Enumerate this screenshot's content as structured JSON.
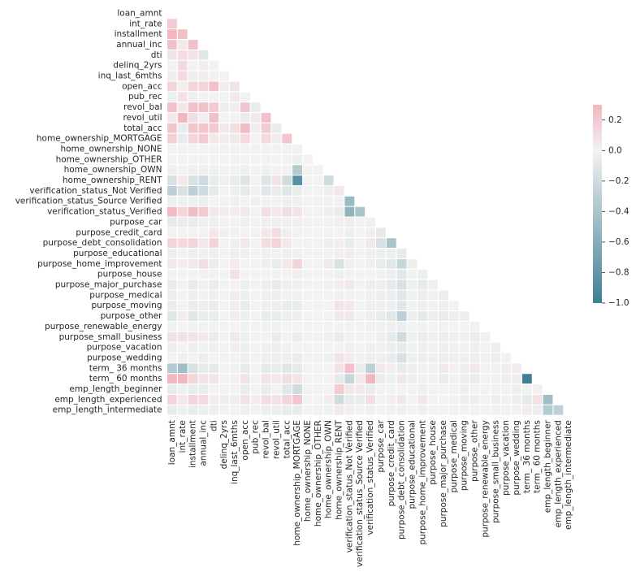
{
  "chart_data": {
    "type": "heatmap",
    "title": "",
    "mask": "upper-triangle-including-diagonal",
    "labels": [
      "loan_amnt",
      "int_rate",
      "installment",
      "annual_inc",
      "dti",
      "delinq_2yrs",
      "inq_last_6mths",
      "open_acc",
      "pub_rec",
      "revol_bal",
      "revol_util",
      "total_acc",
      "home_ownership_MORTGAGE",
      "home_ownership_NONE",
      "home_ownership_OTHER",
      "home_ownership_OWN",
      "home_ownership_RENT",
      "verification_status_Not Verified",
      "verification_status_Source Verified",
      "verification_status_Verified",
      "purpose_car",
      "purpose_credit_card",
      "purpose_debt_consolidation",
      "purpose_educational",
      "purpose_home_improvement",
      "purpose_house",
      "purpose_major_purchase",
      "purpose_medical",
      "purpose_moving",
      "purpose_other",
      "purpose_renewable_energy",
      "purpose_small_business",
      "purpose_vacation",
      "purpose_wedding",
      "term_ 36 months",
      "term_ 60 months",
      "emp_length_beginner",
      "emp_length_experienced",
      "emp_length_intermediate"
    ],
    "vmin": -1.0,
    "vmax": 0.3,
    "center": 0,
    "colorbar": {
      "ticks": [
        -1.0,
        -0.8,
        -0.6,
        -0.4,
        -0.2,
        0.0,
        0.2
      ],
      "tick_labels": [
        "−1.0",
        "−0.8",
        "−0.6",
        "−0.4",
        "−0.2",
        "0.0",
        "0.2"
      ]
    },
    "colors": {
      "negative": "#3f7f93",
      "center": "#f2f2f2",
      "positive": "#f2b6c0"
    },
    "values": [
      [
        0
      ],
      [
        0.2,
        0
      ],
      [
        0.3,
        0.25,
        0
      ],
      [
        0.25,
        0.05,
        0.25,
        0
      ],
      [
        0.07,
        0.1,
        0.07,
        -0.1,
        0
      ],
      [
        0,
        0.12,
        0,
        0.02,
        0,
        0
      ],
      [
        0.02,
        0.12,
        0.02,
        0.03,
        0.01,
        0,
        0
      ],
      [
        0.15,
        0.02,
        0.15,
        0.15,
        0.25,
        0.02,
        0.07,
        0
      ],
      [
        -0.02,
        0.08,
        -0.02,
        0,
        0,
        0,
        0.05,
        0,
        0
      ],
      [
        0.25,
        0.05,
        0.25,
        0.25,
        0.2,
        -0.02,
        0.02,
        0.22,
        -0.05,
        0
      ],
      [
        0.05,
        0.3,
        0.1,
        0.02,
        0.25,
        0,
        0,
        -0.05,
        0.05,
        0.25,
        0
      ],
      [
        0.22,
        -0.05,
        0.22,
        0.22,
        0.2,
        0.05,
        0.1,
        0.28,
        0.02,
        0.2,
        -0.05,
        0
      ],
      [
        0.17,
        -0.05,
        0.15,
        0.2,
        0.05,
        0.02,
        0.05,
        0.12,
        0,
        0.12,
        0.03,
        0.22,
        0
      ],
      [
        0,
        0,
        0,
        0,
        0,
        0,
        0,
        0,
        0,
        0,
        0,
        0,
        -0.01,
        0
      ],
      [
        0,
        0,
        0,
        0,
        0,
        0,
        0,
        0,
        0,
        0,
        0,
        0,
        -0.03,
        0,
        0
      ],
      [
        -0.02,
        0,
        -0.02,
        -0.02,
        -0.02,
        0,
        0,
        -0.02,
        0,
        -0.02,
        0,
        0,
        -0.35,
        0,
        0,
        0
      ],
      [
        -0.15,
        0.05,
        -0.15,
        -0.2,
        -0.05,
        -0.02,
        -0.05,
        -0.12,
        0,
        -0.12,
        0.07,
        -0.2,
        -0.85,
        0,
        0,
        -0.2,
        0
      ],
      [
        -0.3,
        -0.15,
        -0.3,
        -0.2,
        -0.07,
        0,
        -0.02,
        -0.07,
        -0.01,
        -0.1,
        -0.05,
        -0.1,
        -0.05,
        0,
        0,
        0.02,
        0.05,
        0
      ],
      [
        -0.02,
        -0.02,
        -0.02,
        -0.03,
        0,
        0,
        0.02,
        0,
        0.02,
        -0.01,
        0,
        -0.02,
        -0.02,
        0,
        0,
        0.01,
        0.01,
        -0.5,
        0
      ],
      [
        0.28,
        0.15,
        0.27,
        0.2,
        0.05,
        0.02,
        0.02,
        0.05,
        0,
        0.1,
        0.05,
        0.1,
        0.07,
        0,
        0,
        -0.02,
        -0.05,
        -0.55,
        -0.4,
        0
      ],
      [
        -0.07,
        -0.05,
        -0.05,
        -0.02,
        -0.03,
        0,
        0,
        -0.02,
        0,
        -0.03,
        -0.03,
        -0.02,
        0.02,
        0,
        0,
        0,
        -0.02,
        0.03,
        0,
        -0.02,
        0
      ],
      [
        0,
        0,
        0,
        0,
        0.05,
        -0.02,
        -0.01,
        0,
        -0.01,
        0.05,
        0.1,
        0.02,
        0.01,
        0,
        0,
        -0.01,
        0,
        -0.03,
        0,
        0.02,
        -0.07,
        0
      ],
      [
        0.15,
        0.12,
        0.15,
        0.05,
        0.15,
        0,
        -0.02,
        0.05,
        0,
        0.1,
        0.15,
        0.05,
        0,
        0,
        0,
        -0.02,
        0.02,
        -0.05,
        0,
        0.05,
        -0.15,
        -0.4,
        0
      ],
      [
        -0.03,
        0,
        -0.03,
        -0.02,
        -0.02,
        0,
        0.02,
        -0.02,
        0,
        -0.02,
        0,
        -0.02,
        -0.02,
        0,
        0,
        0,
        0.02,
        0.03,
        0,
        -0.02,
        -0.02,
        -0.03,
        -0.07,
        0
      ],
      [
        0.05,
        0.02,
        0.05,
        0.1,
        -0.05,
        0,
        0.03,
        0,
        0,
        0.02,
        -0.05,
        0.05,
        0.15,
        0,
        0,
        0.05,
        -0.15,
        -0.02,
        0,
        0.02,
        -0.05,
        -0.1,
        -0.25,
        -0.03,
        0
      ],
      [
        0,
        0,
        0,
        0.01,
        -0.01,
        0,
        0.08,
        0,
        0,
        0,
        -0.01,
        0,
        0.02,
        0,
        0,
        0,
        -0.02,
        0,
        0,
        0,
        -0.01,
        -0.03,
        -0.1,
        -0.01,
        -0.03,
        0
      ],
      [
        -0.05,
        0,
        -0.05,
        -0.01,
        -0.05,
        0,
        0,
        -0.03,
        0,
        -0.03,
        -0.05,
        -0.02,
        -0.02,
        0,
        0,
        0.01,
        0.02,
        0.05,
        0,
        -0.03,
        -0.03,
        -0.07,
        -0.15,
        -0.02,
        -0.06,
        -0.02,
        0
      ],
      [
        -0.03,
        0,
        -0.02,
        -0.01,
        -0.02,
        0,
        0.03,
        -0.02,
        0,
        -0.02,
        -0.02,
        0,
        0.02,
        0,
        0,
        0,
        -0.02,
        0.01,
        0,
        -0.01,
        -0.02,
        -0.04,
        -0.1,
        -0.01,
        -0.03,
        -0.01,
        -0.03,
        0
      ],
      [
        -0.05,
        0,
        -0.05,
        -0.03,
        -0.05,
        0,
        0.03,
        -0.05,
        0,
        -0.03,
        -0.03,
        -0.05,
        -0.05,
        0,
        0,
        0,
        0.07,
        0.05,
        0,
        -0.03,
        -0.02,
        -0.04,
        -0.1,
        -0.01,
        -0.03,
        -0.01,
        -0.02,
        -0.01,
        0
      ],
      [
        -0.1,
        0.03,
        -0.1,
        -0.05,
        -0.05,
        0,
        0.03,
        -0.03,
        0,
        -0.05,
        -0.05,
        -0.03,
        -0.03,
        0,
        0,
        0,
        0.05,
        0.05,
        0,
        -0.03,
        -0.05,
        -0.1,
        -0.3,
        -0.03,
        -0.08,
        -0.03,
        -0.05,
        -0.03,
        -0.03,
        0
      ],
      [
        -0.01,
        0,
        -0.01,
        0,
        -0.01,
        0,
        0,
        -0.01,
        0,
        -0.01,
        -0.01,
        0,
        0,
        0,
        0,
        0,
        0,
        0.01,
        0,
        -0.01,
        -0.01,
        -0.02,
        -0.04,
        0,
        -0.01,
        0,
        -0.01,
        0,
        0,
        -0.01,
        0
      ],
      [
        0.08,
        0.08,
        0.07,
        0.05,
        -0.05,
        0,
        0.05,
        -0.02,
        0,
        0,
        -0.05,
        0,
        0.05,
        0,
        0,
        0.02,
        -0.05,
        0.01,
        0,
        0.01,
        -0.03,
        -0.07,
        -0.2,
        -0.02,
        -0.05,
        -0.02,
        -0.04,
        -0.02,
        -0.02,
        -0.05,
        -0.01,
        0
      ],
      [
        -0.03,
        0,
        -0.03,
        -0.01,
        -0.02,
        0,
        0.02,
        -0.02,
        0,
        -0.02,
        -0.02,
        -0.01,
        0,
        0,
        0,
        0,
        0,
        0.02,
        0,
        -0.02,
        -0.01,
        -0.03,
        -0.07,
        -0.01,
        -0.02,
        -0.01,
        -0.02,
        -0.01,
        -0.01,
        -0.02,
        0,
        -0.02,
        0
      ],
      [
        0,
        0.02,
        0,
        -0.03,
        0,
        0,
        0,
        -0.02,
        0,
        -0.03,
        0.02,
        -0.03,
        -0.05,
        0,
        0,
        -0.02,
        0.07,
        0.03,
        0,
        -0.02,
        -0.02,
        -0.05,
        -0.15,
        -0.02,
        -0.04,
        -0.02,
        -0.03,
        -0.02,
        -0.02,
        -0.04,
        -0.01,
        -0.03,
        -0.01,
        0
      ],
      [
        -0.35,
        -0.45,
        -0.15,
        -0.07,
        -0.07,
        0,
        -0.01,
        -0.07,
        0,
        -0.07,
        -0.05,
        -0.1,
        -0.07,
        0,
        0,
        0,
        0.07,
        0.25,
        -0.05,
        -0.3,
        0.05,
        0.02,
        -0.05,
        0.02,
        -0.01,
        0.01,
        0.05,
        0.01,
        0.02,
        0.05,
        0,
        -0.01,
        0.02,
        0.03,
        0
      ],
      [
        0.35,
        0.45,
        0.15,
        0.07,
        0.07,
        0,
        0.01,
        0.07,
        0,
        0.07,
        0.05,
        0.1,
        0.07,
        0,
        0,
        0,
        -0.07,
        -0.25,
        0.05,
        0.3,
        -0.05,
        -0.02,
        0.05,
        -0.02,
        0.01,
        -0.01,
        -0.05,
        -0.01,
        -0.02,
        -0.05,
        0,
        0.01,
        -0.02,
        -0.03,
        -1.0,
        0
      ],
      [
        -0.05,
        -0.02,
        -0.05,
        -0.05,
        0,
        0,
        0,
        -0.05,
        0,
        -0.05,
        0,
        -0.1,
        -0.2,
        0,
        0,
        0,
        0.2,
        0.05,
        0.05,
        -0.05,
        0,
        0,
        0,
        0,
        -0.02,
        0,
        0,
        0,
        0.02,
        0.01,
        0,
        -0.01,
        0.01,
        0.02,
        -0.01,
        0.01,
        0
      ],
      [
        0.15,
        0.05,
        0.15,
        0.12,
        0.03,
        0.02,
        0.02,
        0.08,
        0.02,
        0.1,
        0.07,
        0.15,
        0.22,
        0,
        0,
        0.02,
        -0.2,
        -0.05,
        -0.05,
        0.1,
        0,
        0.02,
        0.05,
        0,
        0.05,
        0,
        0,
        0,
        -0.02,
        -0.02,
        0,
        0.02,
        -0.01,
        -0.02,
        -0.07,
        0.07,
        -0.45,
        0
      ],
      [
        -0.05,
        -0.02,
        -0.05,
        -0.03,
        -0.02,
        0,
        0,
        -0.02,
        0,
        -0.03,
        -0.03,
        -0.05,
        -0.05,
        0,
        0,
        -0.01,
        0.05,
        0.02,
        0,
        -0.02,
        0,
        -0.01,
        -0.02,
        0,
        -0.02,
        0,
        0,
        0,
        0,
        0,
        0,
        -0.01,
        0,
        0,
        0.03,
        -0.03,
        -0.35,
        -0.3,
        0
      ]
    ]
  }
}
